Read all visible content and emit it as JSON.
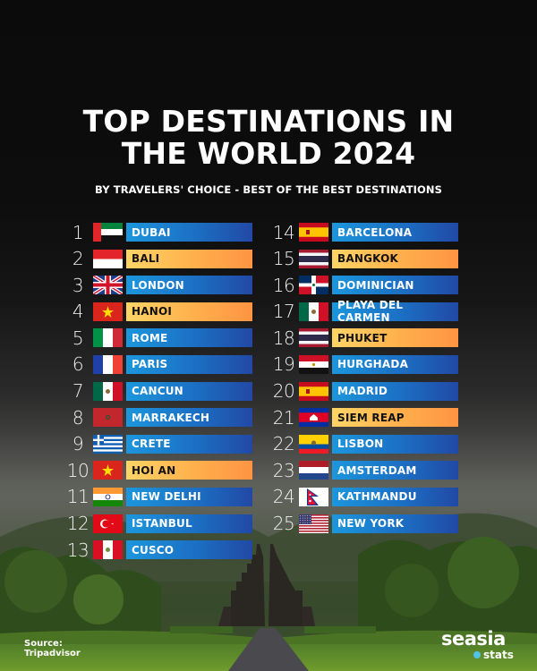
{
  "title": {
    "line1": "TOP DESTINATIONS IN",
    "line2": "THE WORLD 2024"
  },
  "subtitle": "BY TRAVELERS' CHOICE - BEST OF THE BEST DESTINATIONS",
  "colors": {
    "blue_bar_start": "#1c96dc",
    "blue_bar_end": "#2149a5",
    "orange_bar_start": "#ffd466",
    "orange_bar_end": "#ff9443",
    "background_top": "#0b0b0b"
  },
  "destinations": [
    {
      "rank": "1",
      "name": "DUBAI",
      "flag": "uae-flag-icon",
      "style": "blue"
    },
    {
      "rank": "2",
      "name": "BALI",
      "flag": "indonesia-flag-icon",
      "style": "orange"
    },
    {
      "rank": "3",
      "name": "LONDON",
      "flag": "uk-flag-icon",
      "style": "blue"
    },
    {
      "rank": "4",
      "name": "HANOI",
      "flag": "vietnam-flag-icon",
      "style": "orange"
    },
    {
      "rank": "5",
      "name": "ROME",
      "flag": "italy-flag-icon",
      "style": "blue"
    },
    {
      "rank": "6",
      "name": "PARIS",
      "flag": "france-flag-icon",
      "style": "blue"
    },
    {
      "rank": "7",
      "name": "CANCUN",
      "flag": "mexico-flag-icon",
      "style": "blue"
    },
    {
      "rank": "8",
      "name": "MARRAKECH",
      "flag": "morocco-flag-icon",
      "style": "blue"
    },
    {
      "rank": "9",
      "name": "CRETE",
      "flag": "greece-flag-icon",
      "style": "blue"
    },
    {
      "rank": "10",
      "name": "HOI AN",
      "flag": "vietnam-flag-icon",
      "style": "orange"
    },
    {
      "rank": "11",
      "name": "NEW DELHI",
      "flag": "india-flag-icon",
      "style": "blue"
    },
    {
      "rank": "12",
      "name": "ISTANBUL",
      "flag": "turkey-flag-icon",
      "style": "blue"
    },
    {
      "rank": "13",
      "name": "CUSCO",
      "flag": "peru-flag-icon",
      "style": "blue"
    },
    {
      "rank": "14",
      "name": "BARCELONA",
      "flag": "spain-flag-icon",
      "style": "blue"
    },
    {
      "rank": "15",
      "name": "BANGKOK",
      "flag": "thailand-flag-icon",
      "style": "orange"
    },
    {
      "rank": "16",
      "name": "DOMINICIAN",
      "flag": "dominican-republic-flag-icon",
      "style": "blue"
    },
    {
      "rank": "17",
      "name": "PLAYA DEL CARMEN",
      "flag": "mexico-flag-icon",
      "style": "blue"
    },
    {
      "rank": "18",
      "name": "PHUKET",
      "flag": "thailand-flag-icon",
      "style": "orange"
    },
    {
      "rank": "19",
      "name": "HURGHADA",
      "flag": "egypt-flag-icon",
      "style": "blue"
    },
    {
      "rank": "20",
      "name": "MADRID",
      "flag": "spain-flag-icon",
      "style": "blue"
    },
    {
      "rank": "21",
      "name": "SIEM REAP",
      "flag": "cambodia-flag-icon",
      "style": "orange"
    },
    {
      "rank": "22",
      "name": "LISBON",
      "flag": "ecuador-flag-icon",
      "style": "blue"
    },
    {
      "rank": "23",
      "name": "AMSTERDAM",
      "flag": "netherlands-flag-icon",
      "style": "blue"
    },
    {
      "rank": "24",
      "name": "KATHMANDU",
      "flag": "nepal-flag-icon",
      "style": "blue"
    },
    {
      "rank": "25",
      "name": "NEW YORK",
      "flag": "usa-flag-icon",
      "style": "blue"
    }
  ],
  "source": {
    "label": "Source:",
    "value": "Tripadvisor"
  },
  "logo": {
    "brand": "seasia",
    "sub": "stats"
  }
}
